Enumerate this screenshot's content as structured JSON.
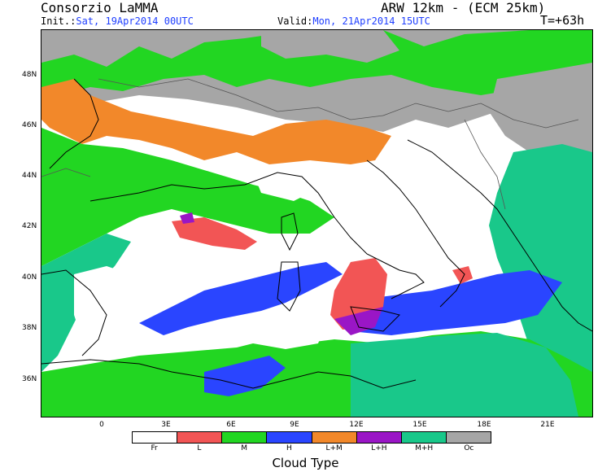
{
  "header": {
    "model_title": "Consorzio LaMMA",
    "run_info": "ARW 12km - (ECM 25km)",
    "init_label": "Init.:",
    "init_value": "Sat, 19Apr2014 00UTC",
    "valid_label": "Valid:",
    "valid_value": "Mon, 21Apr2014 15UTC",
    "forecast_step": "T=+63h"
  },
  "map": {
    "lat_labels": [
      "48N",
      "46N",
      "44N",
      "42N",
      "40N",
      "38N",
      "36N"
    ],
    "lon_labels": [
      "0",
      "3E",
      "6E",
      "9E",
      "12E",
      "15E",
      "18E",
      "21E"
    ]
  },
  "legend": {
    "title": "Cloud Type",
    "categories": [
      {
        "label": "Fr",
        "color": "#ffffff"
      },
      {
        "label": "L",
        "color": "#f25555"
      },
      {
        "label": "M",
        "color": "#22d622"
      },
      {
        "label": "H",
        "color": "#2a45ff"
      },
      {
        "label": "L+M",
        "color": "#f2882a"
      },
      {
        "label": "L+H",
        "color": "#9a16c6"
      },
      {
        "label": "M+H",
        "color": "#19c88a"
      },
      {
        "label": "Oc",
        "color": "#a6a6a6"
      }
    ]
  }
}
